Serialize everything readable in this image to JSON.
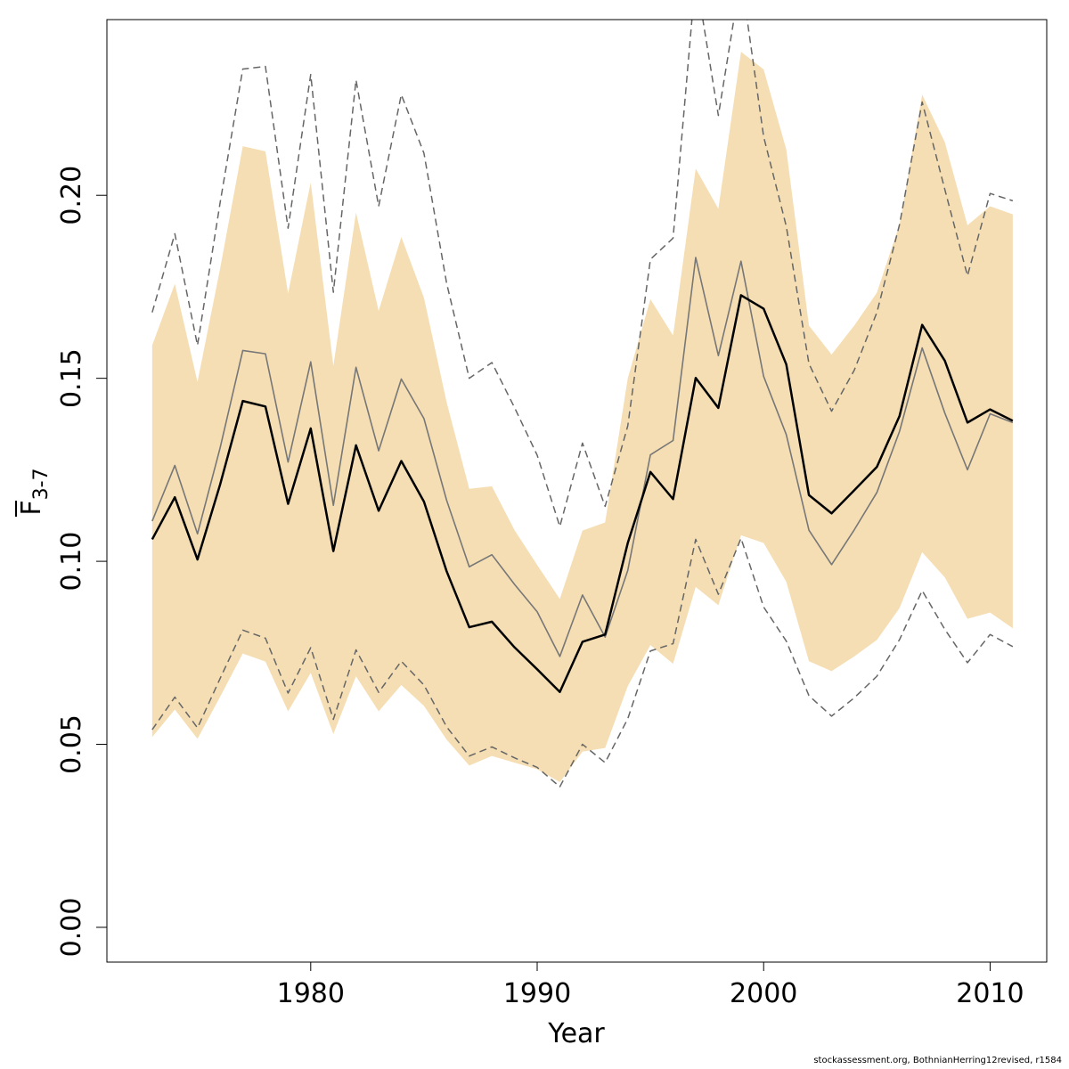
{
  "chart_data": {
    "type": "line",
    "xlabel": "Year",
    "ylabel": {
      "main": "F",
      "sub": "3-7"
    },
    "xlim": [
      1971.0,
      2012.5
    ],
    "ylim": [
      -0.0095,
      0.248
    ],
    "xticks": [
      1980,
      1990,
      2000,
      2010
    ],
    "yticks": [
      0.0,
      0.05,
      0.1,
      0.15,
      0.2
    ],
    "ytick_labels": [
      "0.00",
      "0.05",
      "0.10",
      "0.15",
      "0.20"
    ],
    "band_color": "#f5deb3",
    "x": [
      1973,
      1974,
      1975,
      1976,
      1977,
      1978,
      1979,
      1980,
      1981,
      1982,
      1983,
      1984,
      1985,
      1986,
      1987,
      1988,
      1989,
      1990,
      1991,
      1992,
      1993,
      1994,
      1995,
      1996,
      1997,
      1998,
      1999,
      2000,
      2001,
      2002,
      2003,
      2004,
      2005,
      2006,
      2007,
      2008,
      2009,
      2010,
      2011
    ],
    "series": [
      {
        "role": "estimate",
        "color": "#000000",
        "style": "solid",
        "values": [
          0.106,
          0.1175,
          0.1005,
          0.121,
          0.1438,
          0.1423,
          0.1157,
          0.1363,
          0.1028,
          0.1317,
          0.1138,
          0.1274,
          0.1163,
          0.0973,
          0.082,
          0.0835,
          0.0765,
          0.0705,
          0.0643,
          0.078,
          0.08,
          0.105,
          0.1244,
          0.117,
          0.1501,
          0.1419,
          0.1727,
          0.169,
          0.1538,
          0.1181,
          0.1131,
          0.1194,
          0.1258,
          0.1397,
          0.1646,
          0.1548,
          0.1379,
          0.1415,
          0.1384
        ]
      },
      {
        "role": "band_lower",
        "color": "#f5deb3",
        "style": "fill",
        "values": [
          0.052,
          0.0595,
          0.0515,
          0.063,
          0.0748,
          0.0726,
          0.059,
          0.0695,
          0.0528,
          0.0686,
          0.059,
          0.0662,
          0.0605,
          0.0513,
          0.0442,
          0.0468,
          0.045,
          0.0432,
          0.0397,
          0.048,
          0.049,
          0.0659,
          0.0771,
          0.072,
          0.093,
          0.088,
          0.1071,
          0.105,
          0.0944,
          0.0727,
          0.07,
          0.074,
          0.0785,
          0.0872,
          0.1025,
          0.0956,
          0.0843,
          0.086,
          0.0817
        ]
      },
      {
        "role": "band_upper",
        "color": "#f5deb3",
        "style": "fill",
        "values": [
          0.159,
          0.1758,
          0.149,
          0.18,
          0.2134,
          0.212,
          0.1732,
          0.2035,
          0.1534,
          0.1953,
          0.1684,
          0.1886,
          0.172,
          0.1435,
          0.1198,
          0.1205,
          0.1085,
          0.099,
          0.0897,
          0.1084,
          0.1106,
          0.15,
          0.1716,
          0.1617,
          0.2073,
          0.1963,
          0.2392,
          0.2344,
          0.2125,
          0.1644,
          0.1565,
          0.1644,
          0.1734,
          0.192,
          0.2275,
          0.2145,
          0.1918,
          0.197,
          0.1948
        ]
      },
      {
        "role": "alternative_estimate",
        "color": "#777777",
        "style": "solid",
        "values": [
          0.111,
          0.1262,
          0.1075,
          0.131,
          0.1576,
          0.1567,
          0.1271,
          0.1545,
          0.1153,
          0.153,
          0.1302,
          0.1498,
          0.139,
          0.1167,
          0.0985,
          0.1018,
          0.0937,
          0.0862,
          0.074,
          0.0908,
          0.0793,
          0.0975,
          0.1291,
          0.133,
          0.183,
          0.1562,
          0.182,
          0.1505,
          0.1346,
          0.1085,
          0.0991,
          0.1086,
          0.1188,
          0.1355,
          0.1583,
          0.1405,
          0.125,
          0.1403,
          0.1379
        ]
      },
      {
        "role": "alternative_lower",
        "color": "#777777",
        "style": "dashed",
        "values": [
          0.054,
          0.0629,
          0.0545,
          0.068,
          0.0812,
          0.079,
          0.064,
          0.0764,
          0.0568,
          0.0758,
          0.0642,
          0.0727,
          0.0662,
          0.0548,
          0.0468,
          0.0493,
          0.0463,
          0.0437,
          0.0384,
          0.05,
          0.045,
          0.057,
          0.0755,
          0.0775,
          0.106,
          0.091,
          0.1063,
          0.0875,
          0.0782,
          0.0633,
          0.0577,
          0.0627,
          0.0686,
          0.0786,
          0.092,
          0.0814,
          0.0723,
          0.08,
          0.0767
        ]
      },
      {
        "role": "alternative_upper",
        "color": "#777777",
        "style": "dashed",
        "values": [
          0.168,
          0.1895,
          0.159,
          0.198,
          0.2345,
          0.2352,
          0.191,
          0.233,
          0.1735,
          0.2315,
          0.197,
          0.2275,
          0.2115,
          0.176,
          0.15,
          0.1543,
          0.142,
          0.129,
          0.1095,
          0.1323,
          0.115,
          0.137,
          0.1825,
          0.1883,
          0.26,
          0.2218,
          0.26,
          0.216,
          0.1915,
          0.154,
          0.141,
          0.1522,
          0.168,
          0.192,
          0.2255,
          0.2016,
          0.178,
          0.2005,
          0.1985
        ]
      }
    ]
  },
  "footer": "stockassessment.org, BothnianHerring12revised, r1584"
}
